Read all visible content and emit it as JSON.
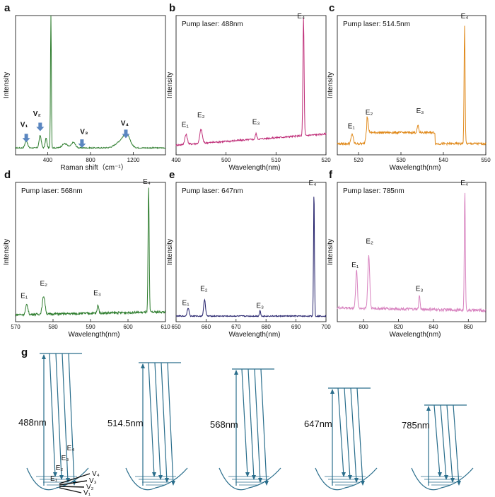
{
  "chart_data": [
    {
      "id": "a",
      "panel_label": "a",
      "type": "line",
      "title": "",
      "pump_label": "",
      "xlabel": "Raman shift（cm⁻¹）",
      "ylabel": "Intensity",
      "xlim": [
        100,
        1500
      ],
      "ylim": [
        0,
        1
      ],
      "xticks": [
        400,
        800,
        1200
      ],
      "color": "#2e7d2e",
      "baseline": 0.05,
      "noise": 0.004,
      "slope": 0.0,
      "peaks": [
        {
          "x": 200,
          "h": 0.05,
          "w": 12
        },
        {
          "x": 330,
          "h": 0.09,
          "w": 10
        },
        {
          "x": 385,
          "h": 0.07,
          "w": 8
        },
        {
          "x": 430,
          "h": 1.0,
          "w": 4
        },
        {
          "x": 560,
          "h": 0.03,
          "w": 25
        },
        {
          "x": 640,
          "h": 0.04,
          "w": 18
        },
        {
          "x": 1090,
          "h": 0.05,
          "w": 50
        },
        {
          "x": 1140,
          "h": 0.07,
          "w": 30
        }
      ],
      "annotations": [
        {
          "text": "V₁",
          "x": 180,
          "y": 0.2
        },
        {
          "text": "V₂",
          "x": 300,
          "y": 0.28
        },
        {
          "text": "V₃",
          "x": 740,
          "y": 0.15
        },
        {
          "text": "V₄",
          "x": 1120,
          "y": 0.21
        }
      ],
      "arrows": [
        {
          "x": 200,
          "y": 0.09
        },
        {
          "x": 330,
          "y": 0.17
        },
        {
          "x": 720,
          "y": 0.05
        },
        {
          "x": 1130,
          "y": 0.12
        }
      ]
    },
    {
      "id": "b",
      "panel_label": "b",
      "type": "line",
      "pump_label": "Pump laser: 488nm",
      "xlabel": "Wavelength(nm)",
      "ylabel": "Intensity",
      "xlim": [
        490,
        520
      ],
      "ylim": [
        0,
        1
      ],
      "xticks": [
        490,
        500,
        510,
        520
      ],
      "color": "#c0307a",
      "baseline": 0.07,
      "noise": 0.006,
      "slope": 0.08,
      "peaks": [
        {
          "x": 492,
          "h": 0.07,
          "w": 0.25
        },
        {
          "x": 495,
          "h": 0.1,
          "w": 0.25
        },
        {
          "x": 506,
          "h": 0.04,
          "w": 0.15
        },
        {
          "x": 515.5,
          "h": 0.85,
          "w": 0.12
        }
      ],
      "annotations": [
        {
          "text": "E₁",
          "x": 491.8,
          "y": 0.2
        },
        {
          "text": "E₂",
          "x": 495,
          "y": 0.27
        },
        {
          "text": "E₃",
          "x": 506,
          "y": 0.22
        },
        {
          "text": "E₄",
          "x": 515,
          "y": 0.98
        }
      ]
    },
    {
      "id": "c",
      "panel_label": "c",
      "type": "line",
      "pump_label": "Pump laser: 514.5nm",
      "xlabel": "Wavelength(nm)",
      "ylabel": "Intensity",
      "xlim": [
        515,
        550
      ],
      "ylim": [
        0,
        1
      ],
      "xticks": [
        520,
        530,
        540,
        550
      ],
      "color": "#e08a1c",
      "baseline": 0.08,
      "noise": 0.008,
      "slope": 0.0,
      "plateau": {
        "from": 522,
        "to": 538,
        "h": 0.08
      },
      "peaks": [
        {
          "x": 518.5,
          "h": 0.07,
          "w": 0.25
        },
        {
          "x": 522,
          "h": 0.12,
          "w": 0.25
        },
        {
          "x": 534,
          "h": 0.05,
          "w": 0.18
        },
        {
          "x": 545,
          "h": 0.85,
          "w": 0.12
        }
      ],
      "annotations": [
        {
          "text": "E₁",
          "x": 518.3,
          "y": 0.19
        },
        {
          "text": "E₂",
          "x": 522.5,
          "y": 0.29
        },
        {
          "text": "E₃",
          "x": 534.5,
          "y": 0.3
        },
        {
          "text": "E₄",
          "x": 545,
          "y": 0.98
        }
      ]
    },
    {
      "id": "d",
      "panel_label": "d",
      "type": "line",
      "pump_label": "Pump laser: 568nm",
      "xlabel": "Wavelength(nm)",
      "ylabel": "Intensity",
      "xlim": [
        570,
        610
      ],
      "ylim": [
        0,
        1
      ],
      "xticks": [
        570,
        580,
        590,
        600,
        610
      ],
      "color": "#2e7d2e",
      "baseline": 0.05,
      "noise": 0.008,
      "slope": 0.02,
      "peaks": [
        {
          "x": 573,
          "h": 0.07,
          "w": 0.3
        },
        {
          "x": 577.5,
          "h": 0.13,
          "w": 0.35
        },
        {
          "x": 592,
          "h": 0.06,
          "w": 0.2
        },
        {
          "x": 605.5,
          "h": 0.9,
          "w": 0.15
        }
      ],
      "annotations": [
        {
          "text": "E₁",
          "x": 572.3,
          "y": 0.17
        },
        {
          "text": "E₂",
          "x": 577.5,
          "y": 0.26
        },
        {
          "text": "E₃",
          "x": 591.8,
          "y": 0.19
        },
        {
          "text": "E₄",
          "x": 605,
          "y": 0.99
        }
      ]
    },
    {
      "id": "e",
      "panel_label": "e",
      "type": "line",
      "pump_label": "Pump laser: 647nm",
      "xlabel": "Wavelength(nm)",
      "ylabel": "Intensity",
      "xlim": [
        650,
        700
      ],
      "ylim": [
        0,
        1
      ],
      "xticks": [
        650,
        660,
        670,
        680,
        690,
        700
      ],
      "color": "#23206b",
      "baseline": 0.04,
      "noise": 0.004,
      "slope": 0.0,
      "peaks": [
        {
          "x": 654,
          "h": 0.06,
          "w": 0.3
        },
        {
          "x": 659.5,
          "h": 0.12,
          "w": 0.3
        },
        {
          "x": 678,
          "h": 0.04,
          "w": 0.2
        },
        {
          "x": 696,
          "h": 0.9,
          "w": 0.15
        }
      ],
      "annotations": [
        {
          "text": "E₁",
          "x": 653.2,
          "y": 0.12
        },
        {
          "text": "E₂",
          "x": 659.3,
          "y": 0.22
        },
        {
          "text": "E₃",
          "x": 678,
          "y": 0.1
        },
        {
          "text": "E₄",
          "x": 695.5,
          "y": 0.98
        }
      ]
    },
    {
      "id": "f",
      "panel_label": "f",
      "type": "line",
      "pump_label": "Pump laser: 785nm",
      "xlabel": "Wavelength(nm)",
      "ylabel": "Intensity",
      "xlim": [
        785,
        870
      ],
      "ylim": [
        0,
        1
      ],
      "xticks": [
        800,
        820,
        840,
        860
      ],
      "color": "#d884c0",
      "baseline": 0.1,
      "noise": 0.01,
      "slope": -0.02,
      "peaks": [
        {
          "x": 796,
          "h": 0.27,
          "w": 0.5
        },
        {
          "x": 803,
          "h": 0.38,
          "w": 0.55
        },
        {
          "x": 832,
          "h": 0.1,
          "w": 0.35
        },
        {
          "x": 858,
          "h": 0.85,
          "w": 0.3
        }
      ],
      "annotations": [
        {
          "text": "E₁",
          "x": 795.2,
          "y": 0.39
        },
        {
          "text": "E₂",
          "x": 803.5,
          "y": 0.56
        },
        {
          "text": "E₃",
          "x": 832,
          "y": 0.22
        },
        {
          "text": "E₄",
          "x": 857.7,
          "y": 0.98
        }
      ]
    }
  ],
  "diagram_g": {
    "panel_label": "g",
    "color": "#2a6e8c",
    "excitations": [
      "488nm",
      "514.5nm",
      "568nm",
      "647nm",
      "785nm"
    ],
    "level_labels": [
      "E₁",
      "E₂",
      "E₃",
      "E₄"
    ],
    "vib_labels": [
      "V₄",
      "V₃",
      "V₂",
      "V₁"
    ]
  }
}
